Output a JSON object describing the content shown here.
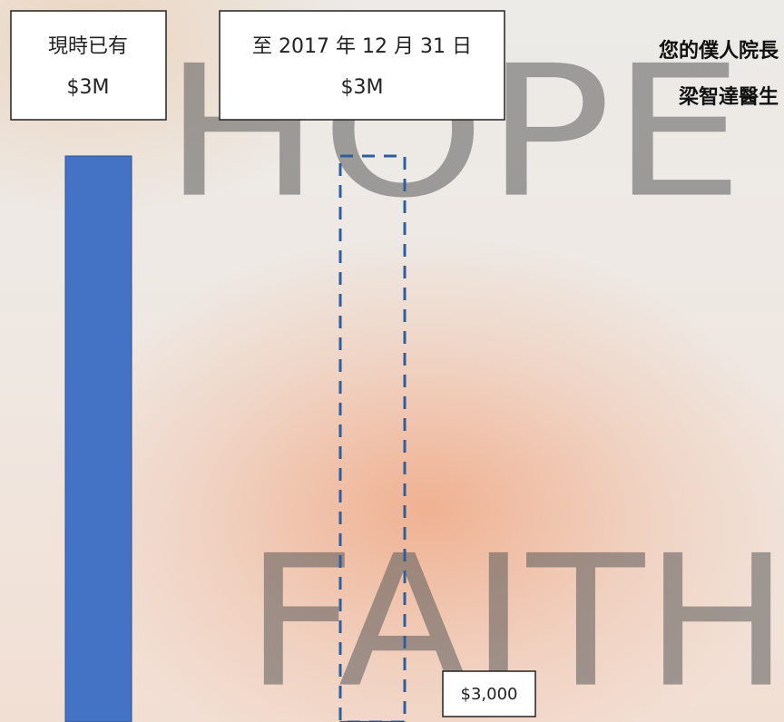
{
  "chart_data": {
    "type": "bar",
    "categories": [
      "現時已有",
      "至 2017 年 12 月 31 日"
    ],
    "values": [
      3000000,
      3000
    ],
    "value_labels": [
      "$3M",
      "$3,000"
    ],
    "target": 3000000,
    "target_label": "$3M",
    "ylim": [
      0,
      3000000
    ],
    "color": "#4472c4",
    "target_color": "#2e5e9e",
    "signature": [
      "您的僕人院長",
      "梁智達醫生"
    ],
    "background_words": [
      "HOPE",
      "FAITH"
    ]
  }
}
